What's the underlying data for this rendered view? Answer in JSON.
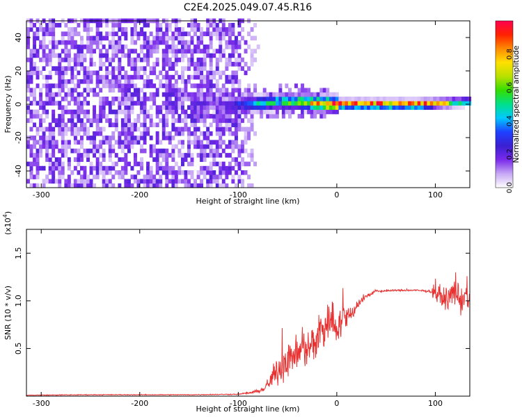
{
  "chart_data": [
    {
      "type": "heatmap",
      "title": "C2E4.2025.049.07.45.R16",
      "xlabel": "Height of straight line (km)",
      "ylabel": "Frequency (Hz)",
      "xlim": [
        -315,
        135
      ],
      "ylim": [
        -50,
        50
      ],
      "xticks": [
        -300,
        -200,
        -100,
        0,
        100
      ],
      "yticks": [
        -40,
        -20,
        0,
        20,
        40
      ],
      "noise_region_x": [
        -315,
        -80
      ],
      "signal_band": {
        "x": [
          -150,
          -120,
          -100,
          -80,
          -60,
          -40,
          -20,
          0,
          40,
          80,
          100,
          130
        ],
        "center_hz": [
          1,
          0,
          0,
          0.5,
          1.5,
          1.5,
          0.5,
          0,
          0,
          0,
          0.5,
          1.5
        ],
        "peak_amplitude": [
          0.2,
          0.15,
          0.3,
          0.45,
          0.5,
          0.6,
          0.85,
          0.95,
          0.97,
          0.97,
          0.75,
          0.45
        ]
      },
      "colorbar": {
        "label": "Normalized spectral amplitude",
        "ticks": [
          "0.0",
          "0.2",
          "0.4",
          "0.6",
          "0.8"
        ],
        "range": [
          0,
          1
        ],
        "colors": [
          "#ffffff",
          "#c7a8f5",
          "#7a2bea",
          "#3b1fd1",
          "#1e40ff",
          "#00c8ff",
          "#00e08a",
          "#33dd00",
          "#b8e000",
          "#ffe000",
          "#ff8a00",
          "#ff2200",
          "#ff0050"
        ]
      }
    },
    {
      "type": "line",
      "xlabel": "Height of straight line (km)",
      "ylabel": "SNR (10 * v/v)",
      "ylabel_multiplier": "(x10",
      "ylabel_multiplier_exp": "4",
      "ylabel_multiplier_close": ")",
      "xlim": [
        -315,
        135
      ],
      "ylim": [
        0,
        1.75
      ],
      "xticks": [
        -300,
        -200,
        -100,
        0,
        100
      ],
      "yticks": [
        "0.5",
        "1.0",
        "1.5"
      ],
      "line_color": "#e83030",
      "series": [
        {
          "x": [
            -315,
            -250,
            -150,
            -100,
            -85,
            -75,
            -70,
            -65,
            -60,
            -55,
            -50,
            -45,
            -40,
            -35,
            -30,
            -25,
            -20,
            -15,
            -12,
            -10,
            -5,
            0,
            5,
            10,
            15,
            20,
            25,
            30,
            40,
            60,
            80,
            95,
            100,
            105,
            110,
            115,
            120,
            125,
            130,
            135
          ],
          "y": [
            0.01,
            0.015,
            0.015,
            0.02,
            0.04,
            0.07,
            0.12,
            0.2,
            0.28,
            0.35,
            0.38,
            0.42,
            0.45,
            0.48,
            0.5,
            0.55,
            0.62,
            0.7,
            0.75,
            0.78,
            0.8,
            0.75,
            0.78,
            0.82,
            0.88,
            0.95,
            1.0,
            1.05,
            1.1,
            1.11,
            1.11,
            1.1,
            1.08,
            1.05,
            1.02,
            1.05,
            1.1,
            1.0,
            1.05,
            0.95
          ],
          "noise_amplitude": [
            0.005,
            0.006,
            0.006,
            0.008,
            0.02,
            0.05,
            0.1,
            0.16,
            0.22,
            0.3,
            0.3,
            0.28,
            0.25,
            0.25,
            0.28,
            0.3,
            0.35,
            0.45,
            0.4,
            0.35,
            0.3,
            0.3,
            0.25,
            0.2,
            0.15,
            0.1,
            0.06,
            0.04,
            0.02,
            0.015,
            0.015,
            0.02,
            0.12,
            0.14,
            0.15,
            0.18,
            0.2,
            0.25,
            0.2,
            0.2
          ]
        }
      ]
    }
  ]
}
